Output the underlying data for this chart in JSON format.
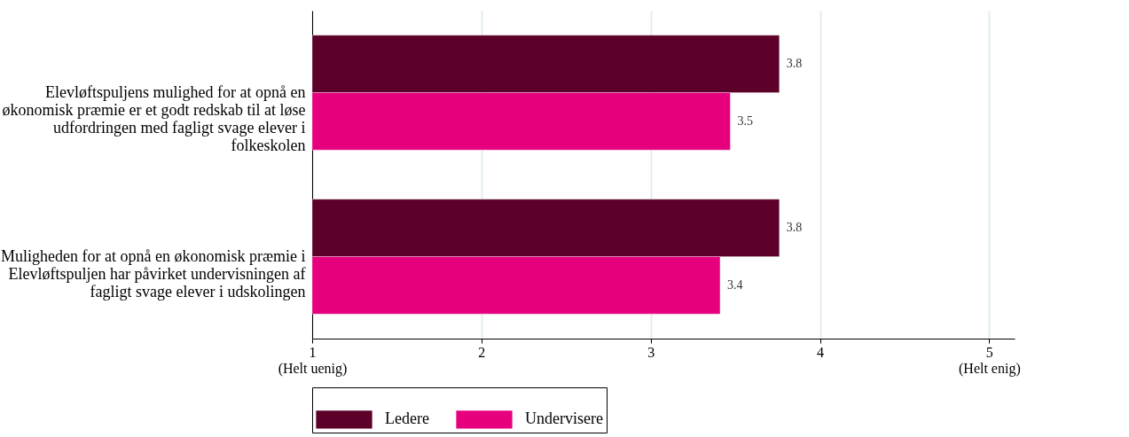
{
  "chart_data": {
    "type": "bar",
    "orientation": "horizontal",
    "categories": [
      "Elevløftspuljens mulighed for at opnå en økonomisk præmie er et godt redskab til at løse udfordringen med fagligt svage elever i folkeskolen",
      "Muligheden for at opnå en økonomisk præmie i Elevløftspuljen har påvirket undervisningen af fagligt svage elever i udskolingen"
    ],
    "series": [
      {
        "name": "Ledere",
        "color": "#5c0029",
        "values": [
          3.76,
          3.76
        ],
        "value_labels": [
          "3.8",
          "3.8"
        ]
      },
      {
        "name": "Undervisere",
        "color": "#e6007e",
        "values": [
          3.47,
          3.41
        ],
        "value_labels": [
          "3.5",
          "3.4"
        ]
      }
    ],
    "xlim": [
      1,
      5.15
    ],
    "xticks": [
      {
        "value": 1,
        "label": "1\n(Helt uenig)"
      },
      2,
      3,
      4,
      {
        "value": 5,
        "label": "5\n(Helt enig)"
      }
    ],
    "grid": "x",
    "legend": "bottom"
  }
}
